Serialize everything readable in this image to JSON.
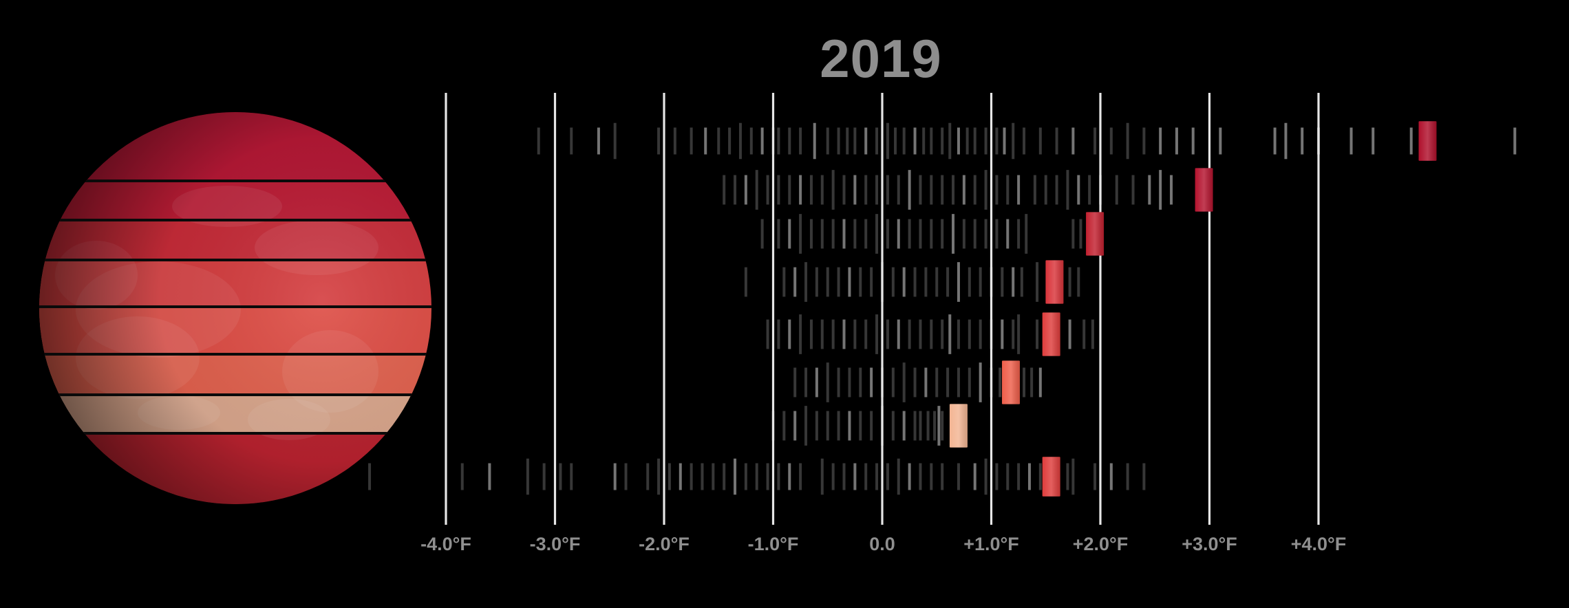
{
  "chart_data": {
    "type": "scatter",
    "title": "2019",
    "x_unit": "°F",
    "xlim": [
      -4.8,
      5.8
    ],
    "x_ticks": [
      {
        "value": -4,
        "label": "-4.0°F"
      },
      {
        "value": -3,
        "label": "-3.0°F"
      },
      {
        "value": -2,
        "label": "-2.0°F"
      },
      {
        "value": -1,
        "label": "-1.0°F"
      },
      {
        "value": 0,
        "label": "0.0"
      },
      {
        "value": 1,
        "label": "+1.0°F"
      },
      {
        "value": 2,
        "label": "+2.0°F"
      },
      {
        "value": 3,
        "label": "+3.0°F"
      },
      {
        "value": 4,
        "label": "+4.0°F"
      }
    ],
    "grid": true,
    "highlight_year": "2019",
    "rows": [
      {
        "band": 1,
        "highlight": 5.0,
        "highlight_color": "#b0102c",
        "history": [
          -3.15,
          -2.85,
          -2.6,
          -2.45,
          -2.05,
          -1.9,
          -1.75,
          -1.62,
          -1.5,
          -1.4,
          -1.3,
          -1.2,
          -1.1,
          -1.0,
          -0.95,
          -0.85,
          -0.75,
          -0.62,
          -0.5,
          -0.4,
          -0.32,
          -0.25,
          -0.15,
          -0.05,
          0.05,
          0.12,
          0.2,
          0.3,
          0.38,
          0.45,
          0.55,
          0.62,
          0.7,
          0.78,
          0.85,
          0.95,
          1.05,
          1.12,
          1.2,
          1.3,
          1.45,
          1.6,
          1.75,
          1.95,
          2.1,
          2.25,
          2.4,
          2.55,
          2.7,
          2.85,
          3.1,
          3.6,
          3.7,
          3.85,
          4.0,
          4.3,
          4.5,
          4.85,
          5.8
        ]
      },
      {
        "band": 2,
        "highlight": 2.95,
        "highlight_color": "#b4132e",
        "history": [
          -1.45,
          -1.35,
          -1.25,
          -1.15,
          -1.05,
          -0.95,
          -0.85,
          -0.75,
          -0.65,
          -0.55,
          -0.45,
          -0.35,
          -0.25,
          -0.15,
          -0.05,
          0.05,
          0.15,
          0.25,
          0.35,
          0.45,
          0.55,
          0.65,
          0.75,
          0.85,
          0.95,
          1.05,
          1.15,
          1.25,
          1.4,
          1.5,
          1.6,
          1.7,
          1.8,
          1.9,
          2.0,
          2.15,
          2.3,
          2.45,
          2.55,
          2.65
        ]
      },
      {
        "band": 3,
        "highlight": 1.95,
        "highlight_color": "#c2202f",
        "history": [
          -1.1,
          -0.95,
          -0.85,
          -0.75,
          -0.65,
          -0.55,
          -0.45,
          -0.35,
          -0.25,
          -0.15,
          -0.05,
          0.05,
          0.15,
          0.25,
          0.35,
          0.45,
          0.55,
          0.65,
          0.75,
          0.85,
          0.95,
          1.05,
          1.15,
          1.25,
          1.32,
          1.75,
          1.82,
          1.9
        ]
      },
      {
        "band": 4,
        "highlight": 1.58,
        "highlight_color": "#d9343a",
        "history": [
          -1.25,
          -0.9,
          -0.8,
          -0.7,
          -0.6,
          -0.5,
          -0.4,
          -0.3,
          -0.2,
          -0.1,
          0.0,
          0.1,
          0.2,
          0.3,
          0.4,
          0.5,
          0.6,
          0.7,
          0.8,
          0.9,
          1.0,
          1.1,
          1.2,
          1.28,
          1.42,
          1.72,
          1.8
        ]
      },
      {
        "band": 5,
        "highlight": 1.55,
        "highlight_color": "#df3d3c",
        "history": [
          -1.05,
          -0.95,
          -0.85,
          -0.75,
          -0.65,
          -0.55,
          -0.45,
          -0.35,
          -0.25,
          -0.15,
          -0.05,
          0.05,
          0.15,
          0.25,
          0.35,
          0.45,
          0.55,
          0.62,
          0.7,
          0.8,
          0.9,
          1.0,
          1.1,
          1.2,
          1.25,
          1.42,
          1.5,
          1.72,
          1.85,
          1.93
        ]
      },
      {
        "band": 6,
        "highlight": 1.18,
        "highlight_color": "#ee5e4a",
        "history": [
          -0.8,
          -0.7,
          -0.6,
          -0.5,
          -0.4,
          -0.3,
          -0.2,
          -0.1,
          0.0,
          0.1,
          0.2,
          0.3,
          0.4,
          0.5,
          0.6,
          0.7,
          0.8,
          0.9,
          1.0,
          1.08,
          1.3,
          1.37,
          1.45
        ]
      },
      {
        "band": 7,
        "highlight": 0.7,
        "highlight_color": "#f3b593",
        "history": [
          -1.0,
          -0.9,
          -0.8,
          -0.7,
          -0.6,
          -0.5,
          -0.4,
          -0.3,
          -0.2,
          -0.1,
          0.0,
          0.1,
          0.2,
          0.3,
          0.35,
          0.42,
          0.48,
          0.52,
          0.55
        ]
      },
      {
        "band": 8,
        "highlight": 1.55,
        "highlight_color": "#df3d3c",
        "history": [
          -4.7,
          -3.85,
          -3.6,
          -3.25,
          -3.1,
          -2.95,
          -2.85,
          -2.45,
          -2.35,
          -2.15,
          -2.05,
          -1.95,
          -1.85,
          -1.75,
          -1.65,
          -1.55,
          -1.45,
          -1.35,
          -1.25,
          -1.15,
          -1.05,
          -0.95,
          -0.85,
          -0.75,
          -0.55,
          -0.45,
          -0.35,
          -0.25,
          -0.15,
          -0.05,
          0.05,
          0.15,
          0.25,
          0.35,
          0.45,
          0.55,
          0.7,
          0.85,
          0.95,
          1.05,
          1.15,
          1.25,
          1.35,
          1.45,
          1.7,
          1.75,
          1.95,
          2.1,
          2.25,
          2.4
        ]
      }
    ]
  },
  "globe": {
    "band_colors": [
      "#b41835",
      "#bb1c35",
      "#c62b38",
      "#d43d3f",
      "#de4d45",
      "#e1614e",
      "#d9a68c",
      "#b8222f"
    ]
  }
}
